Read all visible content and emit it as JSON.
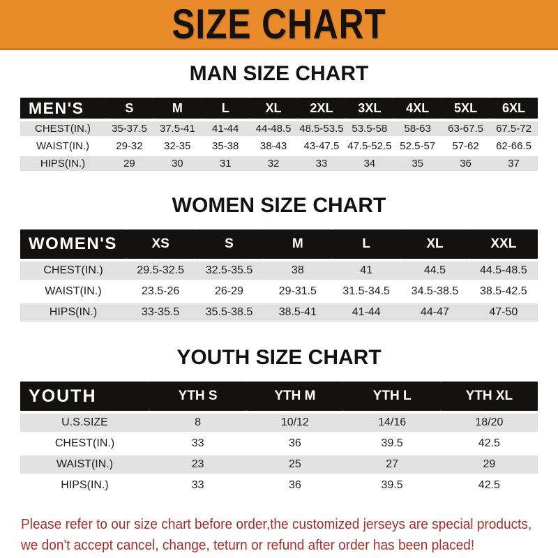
{
  "theme": {
    "accent_orange": "#E98A2B",
    "accent_orange_dark": "#CE751F",
    "header_black": "#141210",
    "row_gray": "#E1E1E1",
    "footer_red": "#A52E28"
  },
  "banner": {
    "title": "SIZE CHART"
  },
  "sections": [
    {
      "heading": "MAN SIZE CHART",
      "header_label": "MEN'S",
      "columns": [
        "S",
        "M",
        "L",
        "XL",
        "2XL",
        "3XL",
        "4XL",
        "5XL",
        "6XL"
      ],
      "rows": [
        {
          "label": "CHEST(IN.)",
          "values": [
            "35-37.5",
            "37.5-41",
            "41-44",
            "44-48.5",
            "48.5-53.5",
            "53.5-58",
            "58-63",
            "63-67.5",
            "67.5-72"
          ]
        },
        {
          "label": "WAIST(IN.)",
          "values": [
            "29-32",
            "32-35",
            "35-38",
            "38-43",
            "43-47.5",
            "47.5-52.5",
            "52.5-57",
            "57-62",
            "62-66.5"
          ]
        },
        {
          "label": "HIPS(IN.)",
          "values": [
            "29",
            "30",
            "31",
            "32",
            "33",
            "34",
            "35",
            "36",
            "37"
          ]
        }
      ]
    },
    {
      "heading": "WOMEN SIZE CHART",
      "header_label": "WOMEN'S",
      "columns": [
        "XS",
        "S",
        "M",
        "L",
        "XL",
        "XXL"
      ],
      "rows": [
        {
          "label": "CHEST(IN.)",
          "values": [
            "29.5-32.5",
            "32.5-35.5",
            "38",
            "41",
            "44.5",
            "44.5-48.5"
          ]
        },
        {
          "label": "WAIST(IN.)",
          "values": [
            "23.5-26",
            "26-29",
            "29-31.5",
            "31.5-34.5",
            "34.5-38.5",
            "38.5-42.5"
          ]
        },
        {
          "label": "HIPS(IN.)",
          "values": [
            "33-35.5",
            "35.5-38.5",
            "38.5-41",
            "41-44",
            "44-47",
            "47-50"
          ]
        }
      ]
    },
    {
      "heading": "YOUTH SIZE CHART",
      "header_label": "YOUTH",
      "columns": [
        "YTH S",
        "YTH M",
        "YTH L",
        "YTH XL"
      ],
      "rows": [
        {
          "label": "U.S.SIZE",
          "values": [
            "8",
            "10/12",
            "14/16",
            "18/20"
          ]
        },
        {
          "label": "CHEST(IN.)",
          "values": [
            "33",
            "36",
            "39.5",
            "42.5"
          ]
        },
        {
          "label": "WAIST(IN.)",
          "values": [
            "23",
            "25",
            "27",
            "29"
          ]
        },
        {
          "label": "HIPS(IN.)",
          "values": [
            "33",
            "36",
            "39.5",
            "42.5"
          ]
        }
      ]
    }
  ],
  "footer": {
    "line1": "Please refer to our size chart before order,the customized jerseys are special products,",
    "line2": "we don't accept cancel, change, teturn or refund after order has been placed!"
  }
}
